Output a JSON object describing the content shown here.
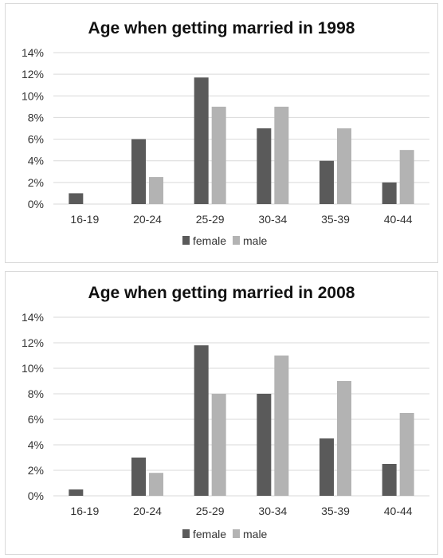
{
  "colors": {
    "female": "#5a5a5a",
    "male": "#b3b3b3",
    "grid": "#d9d9d9"
  },
  "chart_data": [
    {
      "type": "bar",
      "title": "Age when getting married in 1998",
      "categories": [
        "16-19",
        "20-24",
        "25-29",
        "30-34",
        "35-39",
        "40-44"
      ],
      "series": [
        {
          "name": "female",
          "values": [
            1,
            6,
            11.7,
            7,
            4,
            2
          ]
        },
        {
          "name": "male",
          "values": [
            0,
            2.5,
            9,
            9,
            7,
            5
          ]
        }
      ],
      "yticks": [
        "0%",
        "2%",
        "4%",
        "6%",
        "8%",
        "10%",
        "12%",
        "14%"
      ],
      "ylim": [
        0,
        14
      ],
      "grid": true,
      "legend": "bottom"
    },
    {
      "type": "bar",
      "title": "Age when getting married in 2008",
      "categories": [
        "16-19",
        "20-24",
        "25-29",
        "30-34",
        "35-39",
        "40-44"
      ],
      "series": [
        {
          "name": "female",
          "values": [
            0.5,
            3,
            11.8,
            8,
            4.5,
            2.5
          ]
        },
        {
          "name": "male",
          "values": [
            0,
            1.8,
            8,
            11,
            9,
            6.5
          ]
        }
      ],
      "yticks": [
        "0%",
        "2%",
        "4%",
        "6%",
        "8%",
        "10%",
        "12%",
        "14%"
      ],
      "ylim": [
        0,
        14
      ],
      "grid": true,
      "legend": "bottom"
    }
  ]
}
